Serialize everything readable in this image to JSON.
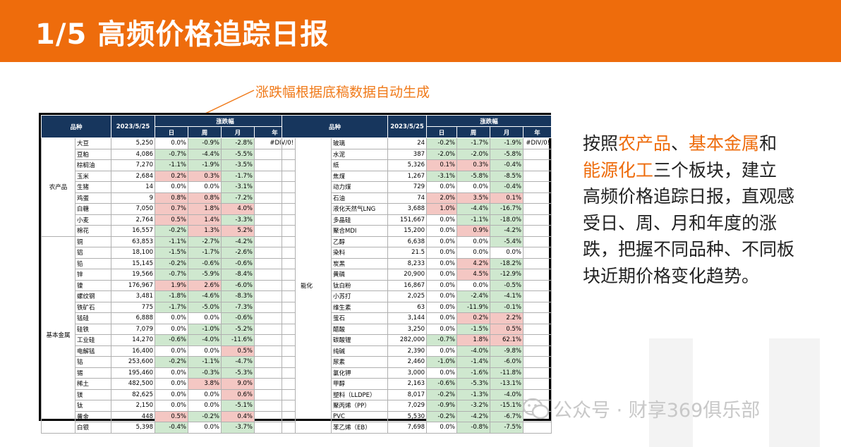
{
  "header": {
    "title": "1/5 高频价格追踪日报"
  },
  "annotation": "涨跌幅根据底稿数据自动生成",
  "table": {
    "col_variety": "品种",
    "col_date": "2023/5/25",
    "col_change": "涨跌幅",
    "col_day": "日",
    "col_week": "周",
    "col_month": "月",
    "col_year": "年",
    "left_groups": [
      {
        "category": "农产品",
        "rows": [
          {
            "name": "大豆",
            "price": "5,250",
            "d": "0.0%",
            "w": "-0.9%",
            "m": "-2.8%",
            "y": "#DIV/0!"
          },
          {
            "name": "豆粕",
            "price": "4,086",
            "d": "-0.7%",
            "w": "-4.4%",
            "m": "-5.5%",
            "y": ""
          },
          {
            "name": "棕榈油",
            "price": "7,270",
            "d": "-1.1%",
            "w": "-1.9%",
            "m": "-3.5%",
            "y": ""
          },
          {
            "name": "玉米",
            "price": "2,684",
            "d": "0.2%",
            "w": "0.3%",
            "m": "-1.7%",
            "y": ""
          },
          {
            "name": "生猪",
            "price": "14",
            "d": "0.0%",
            "w": "0.0%",
            "m": "-3.1%",
            "y": ""
          },
          {
            "name": "鸡蛋",
            "price": "9",
            "d": "0.8%",
            "w": "0.8%",
            "m": "-7.2%",
            "y": ""
          },
          {
            "name": "白糖",
            "price": "7,050",
            "d": "0.7%",
            "w": "1.8%",
            "m": "4.0%",
            "y": ""
          },
          {
            "name": "小麦",
            "price": "2,764",
            "d": "0.5%",
            "w": "1.4%",
            "m": "-3.3%",
            "y": ""
          },
          {
            "name": "棉花",
            "price": "16,557",
            "d": "-0.2%",
            "w": "1.3%",
            "m": "5.2%",
            "y": ""
          }
        ]
      },
      {
        "category": "基本金属",
        "rows": [
          {
            "name": "铜",
            "price": "63,853",
            "d": "-1.1%",
            "w": "-2.7%",
            "m": "-4.2%",
            "y": ""
          },
          {
            "name": "铝",
            "price": "18,100",
            "d": "-1.5%",
            "w": "-1.7%",
            "m": "-2.6%",
            "y": ""
          },
          {
            "name": "铅",
            "price": "15,145",
            "d": "-0.2%",
            "w": "-0.6%",
            "m": "-0.6%",
            "y": ""
          },
          {
            "name": "锌",
            "price": "19,566",
            "d": "-0.7%",
            "w": "-5.9%",
            "m": "-8.4%",
            "y": ""
          },
          {
            "name": "镍",
            "price": "176,967",
            "d": "1.9%",
            "w": "2.6%",
            "m": "-6.0%",
            "y": ""
          },
          {
            "name": "螺纹钢",
            "price": "3,481",
            "d": "-1.8%",
            "w": "-4.6%",
            "m": "-8.3%",
            "y": ""
          },
          {
            "name": "铁矿石",
            "price": "775",
            "d": "-1.7%",
            "w": "-5.0%",
            "m": "-7.3%",
            "y": ""
          },
          {
            "name": "锰硅",
            "price": "6,888",
            "d": "0.0%",
            "w": "0.0%",
            "m": "-0.6%",
            "y": ""
          },
          {
            "name": "硅铁",
            "price": "7,079",
            "d": "0.0%",
            "w": "-1.0%",
            "m": "-5.2%",
            "y": ""
          },
          {
            "name": "工业硅",
            "price": "14,270",
            "d": "-0.6%",
            "w": "-4.0%",
            "m": "-11.6%",
            "y": ""
          },
          {
            "name": "电解锰",
            "price": "16,400",
            "d": "0.0%",
            "w": "0.0%",
            "m": "0.5%",
            "y": ""
          },
          {
            "name": "钴",
            "price": "253,600",
            "d": "-0.2%",
            "w": "-1.1%",
            "m": "-4.7%",
            "y": ""
          },
          {
            "name": "锡",
            "price": "195,460",
            "d": "0.0%",
            "w": "-0.3%",
            "m": "-5.3%",
            "y": ""
          },
          {
            "name": "稀土",
            "price": "482,500",
            "d": "0.0%",
            "w": "3.8%",
            "m": "9.0%",
            "y": ""
          },
          {
            "name": "镁",
            "price": "82,625",
            "d": "0.0%",
            "w": "0.0%",
            "m": "0.6%",
            "y": ""
          },
          {
            "name": "钛",
            "price": "2,150",
            "d": "0.0%",
            "w": "0.0%",
            "m": "-5.1%",
            "y": ""
          },
          {
            "name": "黄金",
            "price": "448",
            "d": "0.5%",
            "w": "-0.2%",
            "m": "0.4%",
            "y": ""
          },
          {
            "name": "白银",
            "price": "5,398",
            "d": "-0.4%",
            "w": "0.0%",
            "m": "-3.7%",
            "y": ""
          }
        ]
      }
    ],
    "right_groups": [
      {
        "category": "能化",
        "rows": [
          {
            "name": "玻璃",
            "price": "24",
            "d": "-0.2%",
            "w": "-1.7%",
            "m": "-1.9%",
            "y": "#DIV/0!"
          },
          {
            "name": "水泥",
            "price": "387",
            "d": "-2.0%",
            "w": "-2.0%",
            "m": "-5.8%",
            "y": ""
          },
          {
            "name": "纸",
            "price": "5,326",
            "d": "0.1%",
            "w": "0.3%",
            "m": "-0.4%",
            "y": ""
          },
          {
            "name": "焦煤",
            "price": "1,267",
            "d": "-3.1%",
            "w": "-5.8%",
            "m": "-8.5%",
            "y": ""
          },
          {
            "name": "动力煤",
            "price": "729",
            "d": "0.0%",
            "w": "0.0%",
            "m": "-0.4%",
            "y": ""
          },
          {
            "name": "石油",
            "price": "74",
            "d": "2.0%",
            "w": "3.5%",
            "m": "0.1%",
            "y": ""
          },
          {
            "name": "液化天然气LNG",
            "price": "3,688",
            "d": "1.0%",
            "w": "-4.4%",
            "m": "-16.7%",
            "y": ""
          },
          {
            "name": "多晶硅",
            "price": "151,667",
            "d": "0.0%",
            "w": "-1.1%",
            "m": "-18.0%",
            "y": ""
          },
          {
            "name": "聚合MDI",
            "price": "15,200",
            "d": "0.0%",
            "w": "0.9%",
            "m": "-4.2%",
            "y": ""
          },
          {
            "name": "乙醇",
            "price": "6,638",
            "d": "0.0%",
            "w": "0.0%",
            "m": "-5.4%",
            "y": ""
          },
          {
            "name": "染料",
            "price": "21.5",
            "d": "0.0%",
            "w": "0.0%",
            "m": "0.0%",
            "y": ""
          },
          {
            "name": "炭黑",
            "price": "8,233",
            "d": "0.0%",
            "w": "4.2%",
            "m": "-18.2%",
            "y": ""
          },
          {
            "name": "黄磷",
            "price": "20,900",
            "d": "0.0%",
            "w": "4.5%",
            "m": "-12.9%",
            "y": ""
          },
          {
            "name": "钛白粉",
            "price": "16,867",
            "d": "0.0%",
            "w": "0.0%",
            "m": "-0.5%",
            "y": ""
          },
          {
            "name": "小苏打",
            "price": "2,025",
            "d": "0.0%",
            "w": "-2.4%",
            "m": "-4.1%",
            "y": ""
          },
          {
            "name": "维生素",
            "price": "63",
            "d": "0.0%",
            "w": "-11.9%",
            "m": "-0.1%",
            "y": ""
          },
          {
            "name": "萤石",
            "price": "3,144",
            "d": "0.0%",
            "w": "0.2%",
            "m": "2.2%",
            "y": ""
          },
          {
            "name": "醋酸",
            "price": "3,250",
            "d": "0.0%",
            "w": "-1.5%",
            "m": "0.5%",
            "y": ""
          },
          {
            "name": "碳酸锂",
            "price": "282,000",
            "d": "-0.7%",
            "w": "1.8%",
            "m": "62.1%",
            "y": ""
          },
          {
            "name": "纯碱",
            "price": "2,390",
            "d": "0.0%",
            "w": "-4.0%",
            "m": "-9.8%",
            "y": ""
          },
          {
            "name": "尿素",
            "price": "2,460",
            "d": "-1.0%",
            "w": "-1.4%",
            "m": "-6.0%",
            "y": ""
          },
          {
            "name": "氯化钾",
            "price": "3,000",
            "d": "0.0%",
            "w": "-1.6%",
            "m": "-11.8%",
            "y": ""
          },
          {
            "name": "甲醇",
            "price": "2,163",
            "d": "-0.6%",
            "w": "-5.3%",
            "m": "-13.1%",
            "y": ""
          },
          {
            "name": "塑料（LLDPE）",
            "price": "8,017",
            "d": "-0.2%",
            "w": "-1.3%",
            "m": "-4.0%",
            "y": ""
          },
          {
            "name": "聚丙烯（PP）",
            "price": "7,029",
            "d": "-0.9%",
            "w": "-3.2%",
            "m": "-15.1%",
            "y": ""
          },
          {
            "name": "PVC",
            "price": "5,530",
            "d": "-0.2%",
            "w": "-4.2%",
            "m": "-6.7%",
            "y": ""
          },
          {
            "name": "苯乙烯（EB）",
            "price": "7,698",
            "d": "0.0%",
            "w": "-0.8%",
            "m": "-7.5%",
            "y": ""
          }
        ]
      }
    ]
  },
  "side_text": {
    "p1": "按照",
    "h1": "农产品",
    "p2": "、",
    "h2": "基本金属",
    "p3": "和",
    "h3": "能源化工",
    "p4": "三个板块，建立高频价格追踪日报，直观感受日、周、月和年度的涨跌，把握不同品种、不同板块近期价格变化趋势。"
  },
  "watermark": "公众号 · 财享369俱乐部",
  "colors": {
    "header": "#ee6c0c",
    "table_head": "#17365d",
    "up": "#f4c7c3",
    "down": "#cfe8cf",
    "accent": "#ee6c0c"
  }
}
